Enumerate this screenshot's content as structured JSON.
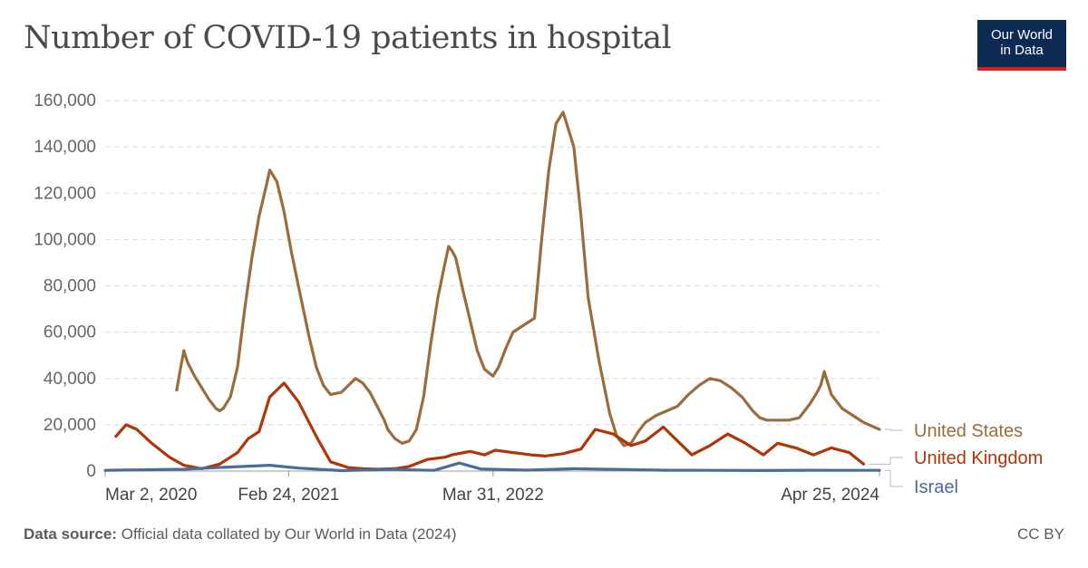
{
  "title": "Number of COVID-19 patients in hospital",
  "logo": {
    "line1": "Our World",
    "line2": "in Data"
  },
  "footer": {
    "source_label": "Data source:",
    "source_text": "Official data collated by Our World in Data (2024)",
    "license": "CC BY"
  },
  "chart_data": {
    "type": "line",
    "title": "Number of COVID-19 patients in hospital",
    "xlabel": "",
    "ylabel": "",
    "x_range": [
      "2020-03-02",
      "2024-04-25"
    ],
    "ylim": [
      0,
      160000
    ],
    "y_ticks": [
      0,
      20000,
      40000,
      60000,
      80000,
      100000,
      120000,
      140000,
      160000
    ],
    "y_tick_labels": [
      "0",
      "20,000",
      "40,000",
      "60,000",
      "80,000",
      "100,000",
      "120,000",
      "140,000",
      "160,000"
    ],
    "x_ticks": [
      "2020-03-02",
      "2021-02-24",
      "2022-03-31",
      "2024-04-25"
    ],
    "x_tick_labels": [
      "Mar 2, 2020",
      "Feb 24, 2021",
      "Mar 31, 2022",
      "Apr 25, 2024"
    ],
    "grid": "horizontal dashed",
    "legend": "right, labels at line ends",
    "series": [
      {
        "name": "United States",
        "color": "#9a6c3e",
        "x": [
          "2020-07-20",
          "2020-07-28",
          "2020-08-03",
          "2020-08-10",
          "2020-08-24",
          "2020-09-07",
          "2020-09-21",
          "2020-10-05",
          "2020-10-12",
          "2020-10-19",
          "2020-11-02",
          "2020-11-16",
          "2020-11-30",
          "2020-12-14",
          "2020-12-28",
          "2021-01-11",
          "2021-01-18",
          "2021-02-01",
          "2021-02-15",
          "2021-03-01",
          "2021-03-15",
          "2021-04-05",
          "2021-04-19",
          "2021-05-03",
          "2021-05-17",
          "2021-06-07",
          "2021-06-21",
          "2021-07-05",
          "2021-07-19",
          "2021-08-02",
          "2021-08-16",
          "2021-08-30",
          "2021-09-06",
          "2021-09-20",
          "2021-10-04",
          "2021-10-18",
          "2021-11-01",
          "2021-11-15",
          "2021-11-29",
          "2021-12-13",
          "2021-12-27",
          "2022-01-03",
          "2022-01-10",
          "2022-01-17",
          "2022-01-31",
          "2022-02-14",
          "2022-02-28",
          "2022-03-14",
          "2022-03-31",
          "2022-04-11",
          "2022-04-25",
          "2022-05-09",
          "2022-05-23",
          "2022-06-06",
          "2022-06-20",
          "2022-07-04",
          "2022-07-18",
          "2022-08-01",
          "2022-08-15",
          "2022-09-05",
          "2022-09-19",
          "2022-10-03",
          "2022-10-24",
          "2022-11-14",
          "2022-11-28",
          "2022-12-12",
          "2022-12-26",
          "2023-01-09",
          "2023-01-23",
          "2023-02-13",
          "2023-03-06",
          "2023-03-27",
          "2023-04-17",
          "2023-05-08",
          "2023-05-29",
          "2023-06-19",
          "2023-07-10",
          "2023-07-31",
          "2023-08-21",
          "2023-09-04",
          "2023-09-18",
          "2023-10-09",
          "2023-10-30",
          "2023-11-20",
          "2023-12-11",
          "2023-12-25",
          "2024-01-01",
          "2024-01-08",
          "2024-01-22",
          "2024-02-12",
          "2024-03-04",
          "2024-03-25",
          "2024-04-25"
        ],
        "y": [
          35000,
          45000,
          52000,
          47000,
          41000,
          36000,
          31000,
          27000,
          26000,
          27000,
          32000,
          45000,
          70000,
          92000,
          110000,
          123000,
          130000,
          125000,
          112000,
          95000,
          80000,
          58000,
          45000,
          37000,
          33000,
          34000,
          37000,
          40000,
          38000,
          34000,
          28000,
          22000,
          18000,
          14000,
          12000,
          13000,
          18000,
          32000,
          55000,
          75000,
          90000,
          97000,
          95000,
          92000,
          78000,
          65000,
          52000,
          44000,
          41000,
          45000,
          53000,
          60000,
          62000,
          64000,
          66000,
          100000,
          130000,
          150000,
          155000,
          140000,
          110000,
          75000,
          48000,
          25000,
          15000,
          11000,
          12000,
          17000,
          21000,
          24000,
          26000,
          28000,
          33000,
          37000,
          40000,
          39000,
          36000,
          32000,
          26000,
          23000,
          22000,
          22000,
          22000,
          23000,
          29000,
          34000,
          37000,
          43000,
          33000,
          27000,
          24000,
          21000,
          18000
        ]
      },
      {
        "name": "United Kingdom",
        "color": "#b13507",
        "x": [
          "2020-03-23",
          "2020-04-12",
          "2020-05-03",
          "2020-06-01",
          "2020-07-06",
          "2020-08-03",
          "2020-09-07",
          "2020-10-12",
          "2020-11-16",
          "2020-12-07",
          "2020-12-28",
          "2021-01-18",
          "2021-02-15",
          "2021-03-15",
          "2021-04-19",
          "2021-05-17",
          "2021-06-21",
          "2021-07-19",
          "2021-08-16",
          "2021-09-20",
          "2021-10-18",
          "2021-11-22",
          "2021-12-27",
          "2022-01-10",
          "2022-02-14",
          "2022-03-14",
          "2022-04-04",
          "2022-05-09",
          "2022-06-13",
          "2022-07-11",
          "2022-08-15",
          "2022-09-19",
          "2022-10-17",
          "2022-11-21",
          "2022-12-26",
          "2023-01-23",
          "2023-02-27",
          "2023-03-27",
          "2023-04-24",
          "2023-05-29",
          "2023-07-03",
          "2023-08-07",
          "2023-09-11",
          "2023-10-09",
          "2023-11-13",
          "2023-12-18",
          "2024-01-22",
          "2024-02-26",
          "2024-03-25"
        ],
        "y": [
          15000,
          20000,
          18000,
          12000,
          6000,
          2500,
          1000,
          3000,
          8000,
          14000,
          17000,
          32000,
          38000,
          30000,
          15000,
          4000,
          1500,
          1000,
          800,
          1000,
          2000,
          5000,
          6000,
          7000,
          8500,
          7000,
          9000,
          8000,
          7000,
          6500,
          7500,
          9500,
          18000,
          16000,
          11000,
          13000,
          19000,
          13000,
          7000,
          11000,
          16000,
          12000,
          7000,
          12000,
          10000,
          7000,
          10000,
          8000,
          3000
        ]
      },
      {
        "name": "Israel",
        "color": "#4c6a9c",
        "x": [
          "2020-03-02",
          "2020-05-01",
          "2020-08-03",
          "2020-10-05",
          "2021-01-18",
          "2021-03-15",
          "2021-06-07",
          "2021-09-06",
          "2021-12-06",
          "2022-01-24",
          "2022-03-07",
          "2022-06-06",
          "2022-09-05",
          "2022-12-05",
          "2023-03-06",
          "2023-06-05",
          "2023-09-04",
          "2023-12-04",
          "2024-03-04",
          "2024-04-25"
        ],
        "y": [
          300,
          500,
          800,
          1500,
          2500,
          1300,
          200,
          700,
          300,
          3500,
          900,
          400,
          1000,
          700,
          350,
          300,
          250,
          350,
          300,
          300
        ]
      }
    ]
  }
}
